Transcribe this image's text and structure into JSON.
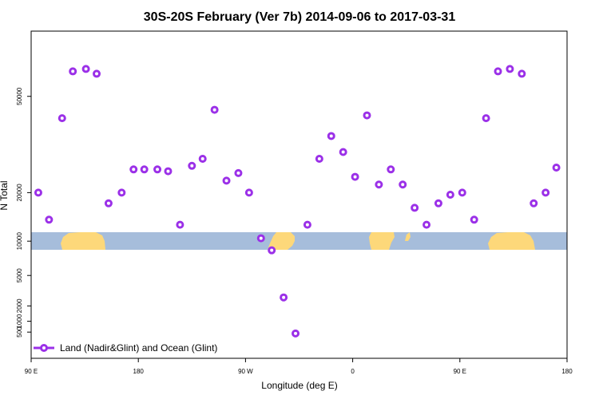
{
  "colors": {
    "marker": "#9b30e8",
    "ocean": "#a6bddb",
    "land": "#fdd87a",
    "axis": "#000000"
  },
  "chart_data": {
    "type": "scatter",
    "title": "30S-20S February (Ver 7b)   2014-09-06 to 2017-03-31",
    "xlabel": "Longitude (deg E)",
    "ylabel": "N Total",
    "y_scale": "sqrt",
    "xlim": [
      90,
      540
    ],
    "ylim": [
      0,
      78000
    ],
    "x_ticks": [
      {
        "value": 90,
        "label": "90 E"
      },
      {
        "value": 180,
        "label": "180"
      },
      {
        "value": 270,
        "label": "90 W"
      },
      {
        "value": 360,
        "label": "0"
      },
      {
        "value": 450,
        "label": "90 E"
      },
      {
        "value": 540,
        "label": "180"
      }
    ],
    "y_ticks": [
      {
        "value": 500,
        "label": "500"
      },
      {
        "value": 1000,
        "label": "1000"
      },
      {
        "value": 2000,
        "label": "2000"
      },
      {
        "value": 5000,
        "label": "5000"
      },
      {
        "value": 10000,
        "label": "10000"
      },
      {
        "value": 20000,
        "label": "20000"
      },
      {
        "value": 50000,
        "label": "50000"
      }
    ],
    "legend": {
      "label": "Land (Nadir&Glint) and Ocean (Glint)",
      "position": "bottom-left"
    },
    "series": [
      {
        "name": "Land (Nadir&Glint) and Ocean (Glint)",
        "x": [
          96,
          105,
          116,
          125,
          136,
          145,
          155,
          166,
          176,
          185,
          196,
          205,
          215,
          225,
          234,
          244,
          254,
          264,
          273,
          283,
          292,
          302,
          312,
          322,
          332,
          342,
          352,
          362,
          372,
          382,
          392,
          402,
          412,
          422,
          432,
          442,
          452,
          462,
          472,
          482,
          492,
          502,
          512,
          522,
          531
        ],
        "y": [
          20000,
          14000,
          42000,
          60000,
          61000,
          59000,
          17500,
          20000,
          26000,
          26000,
          26000,
          25500,
          13000,
          27000,
          29000,
          45000,
          23000,
          25000,
          20000,
          10500,
          8500,
          2700,
          450,
          13000,
          29000,
          36000,
          31000,
          24000,
          43000,
          22000,
          26000,
          22000,
          16500,
          13000,
          17500,
          19500,
          20000,
          14000,
          42000,
          60000,
          61000,
          59000,
          17500,
          20000,
          26500
        ]
      }
    ]
  }
}
